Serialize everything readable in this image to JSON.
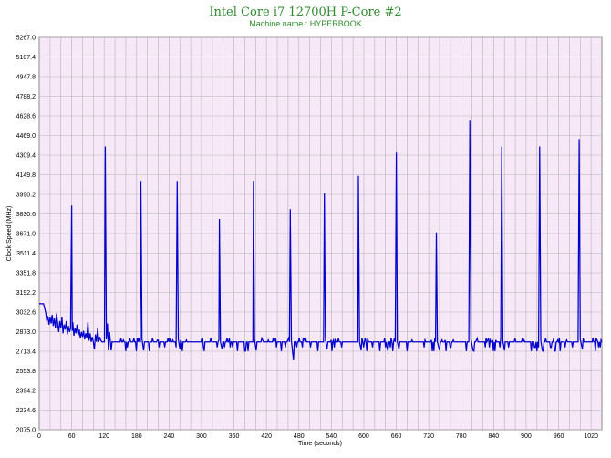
{
  "chart_data": {
    "type": "line",
    "title": "Intel Core i7 12700H P-Core #2",
    "subtitle": "Machine name : HYPERBOOK",
    "xlabel": "Time (seconds)",
    "ylabel": "Clock Speed (MHz)",
    "xlim": [
      0,
      1040
    ],
    "ylim": [
      2075.0,
      5267.0
    ],
    "x_ticks": [
      0,
      60,
      120,
      180,
      240,
      300,
      360,
      420,
      480,
      540,
      600,
      660,
      720,
      780,
      840,
      900,
      960,
      1020
    ],
    "y_ticks": [
      "2075.0",
      "2234.6",
      "2394.2",
      "2553.8",
      "2713.4",
      "2873.0",
      "3032.6",
      "3192.2",
      "3351.8",
      "3511.4",
      "3671.0",
      "3830.6",
      "3990.2",
      "4149.8",
      "4309.4",
      "4469.0",
      "4628.6",
      "4788.2",
      "4947.8",
      "5107.4",
      "5267.0"
    ],
    "grid": true,
    "colors": {
      "plot_background": "#f7e8f7",
      "grid": "#b3b3b3",
      "line": "#0000cc",
      "title": "#2e8b2e"
    },
    "baseline_mhz": 2790,
    "baseline_low_mhz": 2715,
    "baseline_high_mhz": 2820,
    "series": [
      {
        "values": [
          [
            0,
            3100
          ],
          [
            8,
            3100
          ],
          [
            12,
            3030
          ],
          [
            14,
            2960
          ],
          [
            16,
            3000
          ],
          [
            18,
            2930
          ],
          [
            20,
            2990
          ],
          [
            22,
            2940
          ],
          [
            24,
            3010
          ],
          [
            26,
            2920
          ],
          [
            28,
            2980
          ],
          [
            30,
            2900
          ],
          [
            32,
            3020
          ],
          [
            34,
            2940
          ],
          [
            36,
            2870
          ],
          [
            38,
            2960
          ],
          [
            40,
            2900
          ],
          [
            42,
            2990
          ],
          [
            44,
            2860
          ],
          [
            46,
            2930
          ],
          [
            48,
            2890
          ],
          [
            50,
            2960
          ],
          [
            52,
            2850
          ],
          [
            54,
            2920
          ],
          [
            56,
            2870
          ],
          [
            58,
            2900
          ],
          [
            60,
            3900
          ],
          [
            61,
            2880
          ],
          [
            62,
            2950
          ],
          [
            64,
            2840
          ],
          [
            66,
            2900
          ],
          [
            68,
            2860
          ],
          [
            70,
            2930
          ],
          [
            72,
            2840
          ],
          [
            74,
            2890
          ],
          [
            76,
            2820
          ],
          [
            78,
            2870
          ],
          [
            80,
            2830
          ],
          [
            82,
            2880
          ],
          [
            84,
            2810
          ],
          [
            86,
            2860
          ],
          [
            88,
            2820
          ],
          [
            90,
            2950
          ],
          [
            92,
            2800
          ],
          [
            94,
            2860
          ],
          [
            96,
            2790
          ],
          [
            98,
            2830
          ],
          [
            100,
            2790
          ],
          [
            102,
            2730
          ],
          [
            104,
            2850
          ],
          [
            106,
            2790
          ],
          [
            108,
            2900
          ],
          [
            110,
            2790
          ],
          [
            112,
            2830
          ],
          [
            114,
            2800
          ],
          [
            116,
            2790
          ],
          [
            122,
            4380
          ],
          [
            124,
            2810
          ],
          [
            126,
            2940
          ],
          [
            128,
            2720
          ],
          [
            130,
            2870
          ],
          [
            133,
            2720
          ],
          [
            188,
            4100
          ],
          [
            190,
            2810
          ],
          [
            193,
            2720
          ],
          [
            255,
            4100
          ],
          [
            257,
            2810
          ],
          [
            260,
            2730
          ],
          [
            333,
            3790
          ],
          [
            335,
            2790
          ],
          [
            338,
            2730
          ],
          [
            396,
            4100
          ],
          [
            398,
            2810
          ],
          [
            401,
            2720
          ],
          [
            464,
            3870
          ],
          [
            466,
            2800
          ],
          [
            470,
            2640
          ],
          [
            527,
            4000
          ],
          [
            529,
            2810
          ],
          [
            532,
            2730
          ],
          [
            590,
            4140
          ],
          [
            592,
            2790
          ],
          [
            595,
            2720
          ],
          [
            660,
            4330
          ],
          [
            662,
            2790
          ],
          [
            665,
            2730
          ],
          [
            734,
            3680
          ],
          [
            736,
            2790
          ],
          [
            740,
            2720
          ],
          [
            796,
            4590
          ],
          [
            798,
            2810
          ],
          [
            802,
            2720
          ],
          [
            855,
            4380
          ],
          [
            857,
            2800
          ],
          [
            860,
            2720
          ],
          [
            925,
            4380
          ],
          [
            927,
            2800
          ],
          [
            930,
            2720
          ],
          [
            998,
            4440
          ],
          [
            1000,
            2810
          ],
          [
            1004,
            2730
          ],
          [
            1040,
            2790
          ]
        ]
      }
    ]
  }
}
